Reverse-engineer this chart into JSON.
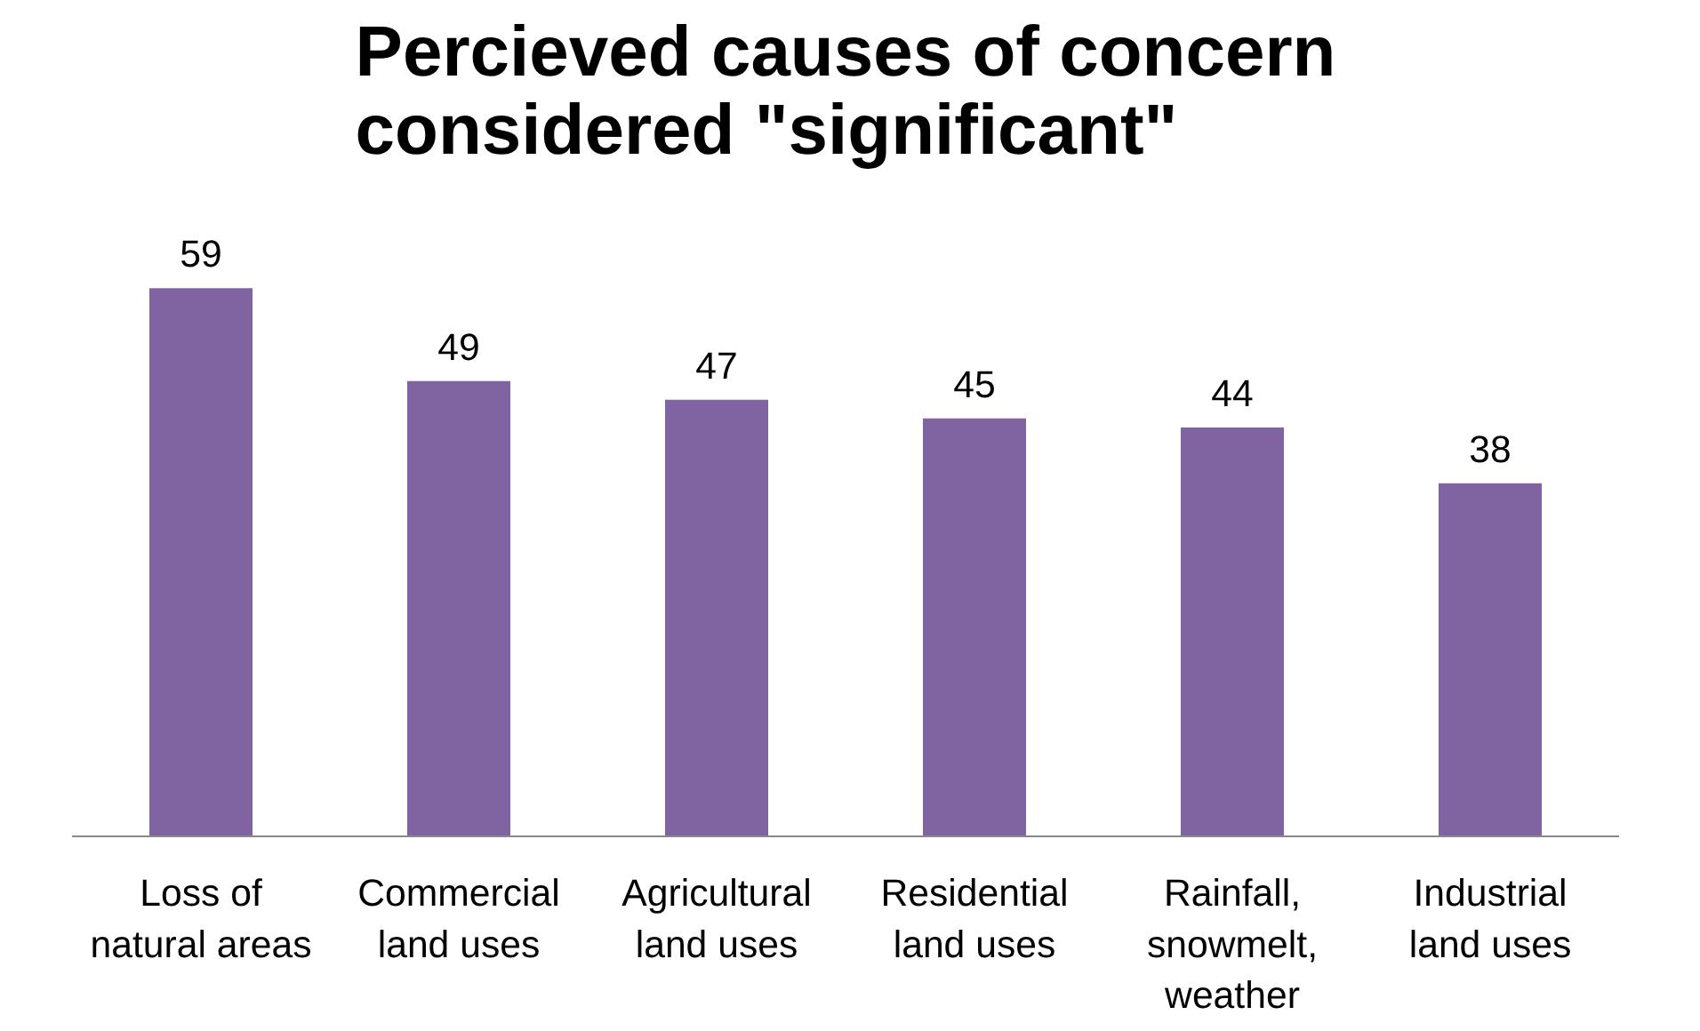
{
  "chart_data": {
    "type": "bar",
    "title": "Percieved causes of concern\nconsidered \"significant\"",
    "categories": [
      "Loss of\nnatural areas",
      "Commercial\nland uses",
      "Agricultural\nland uses",
      "Residential\nland uses",
      "Rainfall,\nsnowmelt,\nweather",
      "Industrial\nland uses"
    ],
    "values": [
      59,
      49,
      47,
      45,
      44,
      38
    ],
    "color": "#8064a2",
    "data_labels": true
  }
}
